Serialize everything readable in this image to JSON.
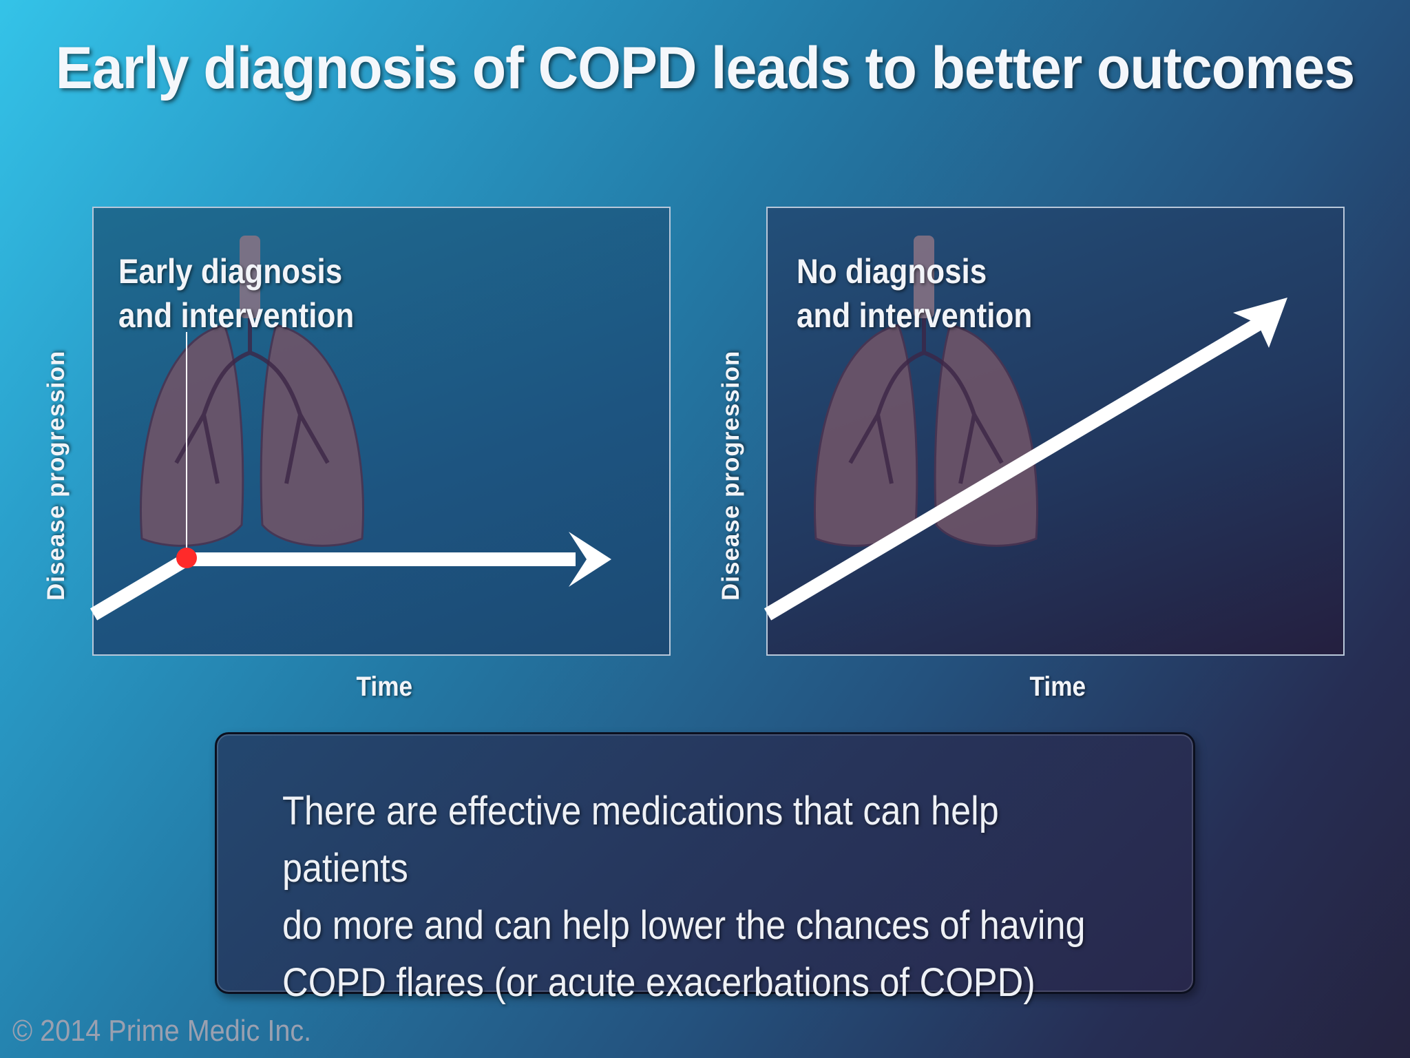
{
  "title": "Early diagnosis of COPD leads to better outcomes",
  "panels": [
    {
      "label_line1": "Early diagnosis",
      "label_line2": "and intervention",
      "ylabel": "Disease progression",
      "xlabel": "Time"
    },
    {
      "label_line1": "No diagnosis",
      "label_line2": "and intervention",
      "ylabel": "Disease progression",
      "xlabel": "Time"
    }
  ],
  "note": {
    "line1": "There are effective medications that can help patients",
    "line2": "do more and can help lower the chances of having",
    "line3": "COPD flares (or acute exacerbations of COPD)"
  },
  "copyright": "© 2014 Prime Medic Inc.",
  "colors": {
    "intervention_marker": "#ff2a2a",
    "arrow": "#ffffff",
    "lungs": "#7a5c74"
  }
}
